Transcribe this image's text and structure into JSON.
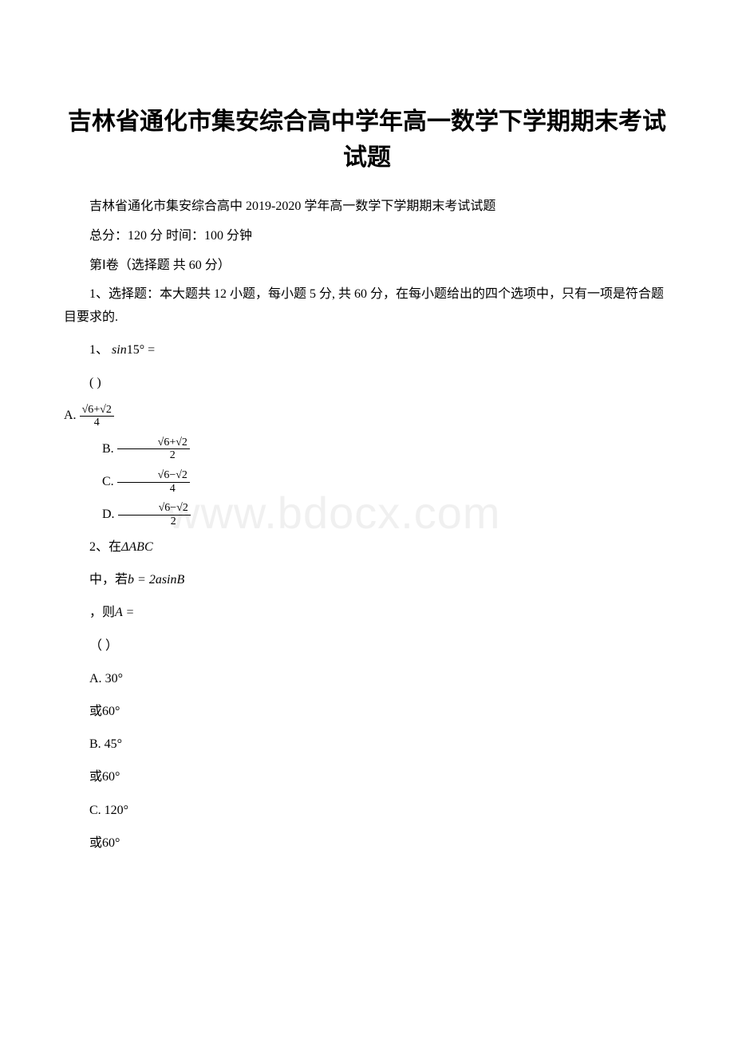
{
  "title": "吉林省通化市集安综合高中学年高一数学下学期期末考试试题",
  "subtitle": "吉林省通化市集安综合高中 2019-2020 学年高一数学下学期期末考试试题",
  "score_time": "总分：120 分 时间：100 分钟",
  "part1": "第Ⅰ卷（选择题 共 60 分）",
  "instructions": "1、选择题：本大题共 12 小题，每小题 5 分, 共 60 分，在每小题给出的四个选项中，只有一项是符合题目要求的.",
  "q1": {
    "label": "1、",
    "expr_lhs": "sin",
    "expr_arg": "15° =",
    "paren": "(  )",
    "optA_label": "A. ",
    "optA_num": "√6+√2",
    "optA_den": "4",
    "optB_label": "B. ",
    "optB_num": "√6+√2",
    "optB_den": "2",
    "optC_label": "C. ",
    "optC_num": "√6−√2",
    "optC_den": "4",
    "optD_label": "D. ",
    "optD_num": "√6−√2",
    "optD_den": "2"
  },
  "q2": {
    "label": "2、在",
    "triangle": "ΔABC",
    "line2a": "中，若",
    "line2b": "b = 2asinB",
    "line3a": "，则",
    "line3b": "A =",
    "paren": "（  ）",
    "optA_label": "A. ",
    "optA_val": "30°",
    "or": "或",
    "sixty": "60°",
    "optB_label": " B. ",
    "optB_val": "45°",
    "optC_label": " C. ",
    "optC_val": "120°"
  },
  "watermark": "www.bdocx.com"
}
